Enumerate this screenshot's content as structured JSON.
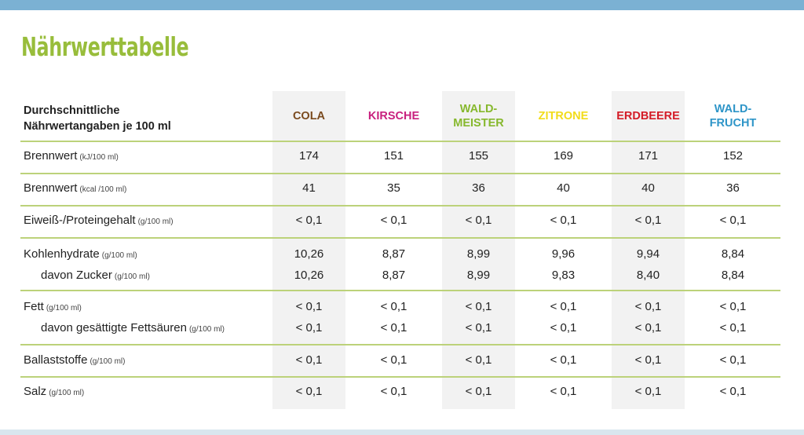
{
  "title": "Nährwerttabelle",
  "header": {
    "description": "Durchschnittliche\nNährwertangaben je 100 ml",
    "columns": [
      {
        "label": "COLA",
        "color": "#7a4a1e"
      },
      {
        "label": "KIRSCHE",
        "color": "#c8207e"
      },
      {
        "label": "WALD-\nMEISTER",
        "color": "#86b82d"
      },
      {
        "label": "ZITRONE",
        "color": "#f2dc1a"
      },
      {
        "label": "ERDBEERE",
        "color": "#d41c27"
      },
      {
        "label": "WALD-\nFRUCHT",
        "color": "#2e95c8"
      }
    ]
  },
  "rows": [
    {
      "label": "Brennwert",
      "unit": "(kJ/100 ml)",
      "values": [
        "174",
        "151",
        "155",
        "169",
        "171",
        "152"
      ]
    },
    {
      "label": "Brennwert",
      "unit": "(kcal /100 ml)",
      "values": [
        "41",
        "35",
        "36",
        "40",
        "40",
        "36"
      ]
    },
    {
      "label": "Eiweiß-/Proteingehalt",
      "unit": "(g/100 ml)",
      "values": [
        "< 0,1",
        "< 0,1",
        "< 0,1",
        "< 0,1",
        "< 0,1",
        "< 0,1"
      ]
    },
    {
      "label": "Kohlenhydrate",
      "unit": "(g/100 ml)",
      "values": [
        "10,26",
        "8,87",
        "8,99",
        "9,96",
        "9,94",
        "8,84"
      ]
    },
    {
      "label": "davon Zucker",
      "unit": "(g/100 ml)",
      "values": [
        "10,26",
        "8,87",
        "8,99",
        "9,83",
        "8,40",
        "8,84"
      ]
    },
    {
      "label": "Fett",
      "unit": "(g/100 ml)",
      "values": [
        "< 0,1",
        "< 0,1",
        "< 0,1",
        "< 0,1",
        "< 0,1",
        "< 0,1"
      ]
    },
    {
      "label": "davon gesättigte Fettsäuren",
      "unit": "(g/100 ml)",
      "values": [
        "< 0,1",
        "< 0,1",
        "< 0,1",
        "< 0,1",
        "< 0,1",
        "< 0,1"
      ]
    },
    {
      "label": "Ballaststoffe",
      "unit": "(g/100 ml)",
      "values": [
        "< 0,1",
        "< 0,1",
        "< 0,1",
        "< 0,1",
        "< 0,1",
        "< 0,1"
      ]
    },
    {
      "label": "Salz",
      "unit": "(g/100 ml)",
      "values": [
        "< 0,1",
        "< 0,1",
        "< 0,1",
        "< 0,1",
        "< 0,1",
        "< 0,1"
      ]
    }
  ]
}
